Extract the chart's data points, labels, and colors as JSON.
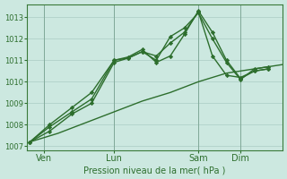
{
  "background_color": "#cce8e0",
  "grid_color": "#aaccc4",
  "line_color": "#2d6e2d",
  "text_color": "#2d6e2d",
  "xlabel": "Pression niveau de la mer( hPa )",
  "ylim": [
    1006.8,
    1013.6
  ],
  "yticks": [
    1007,
    1008,
    1009,
    1010,
    1011,
    1012,
    1013
  ],
  "day_labels": [
    "Ven",
    "Lun",
    "Sam",
    "Dim"
  ],
  "day_positions": [
    0.5,
    3.0,
    6.0,
    7.5
  ],
  "vlines_x": [
    0.5,
    3.0,
    6.0,
    7.5
  ],
  "xlim": [
    -0.1,
    9.0
  ],
  "series": [
    {
      "x": [
        0,
        1,
        2,
        3,
        4,
        5,
        6,
        7,
        8,
        9
      ],
      "y": [
        1007.2,
        1007.6,
        1008.1,
        1008.6,
        1009.1,
        1009.5,
        1010.0,
        1010.4,
        1010.6,
        1010.8
      ],
      "style": "-",
      "marker": null,
      "lw": 1.0
    },
    {
      "x": [
        0,
        0.7,
        1.5,
        2.2,
        3.0,
        3.5,
        4.0,
        4.5,
        5.0,
        5.5,
        6.0,
        6.5,
        7.0,
        7.5,
        8.0,
        8.5
      ],
      "y": [
        1007.2,
        1008.0,
        1008.8,
        1009.5,
        1011.0,
        1011.1,
        1011.4,
        1011.2,
        1011.8,
        1012.3,
        1013.25,
        1011.2,
        1010.3,
        1010.2,
        1010.5,
        1010.6
      ],
      "style": "-",
      "marker": "D",
      "markersize": 2.2,
      "lw": 1.0
    },
    {
      "x": [
        0,
        0.7,
        1.5,
        2.2,
        3.0,
        3.5,
        4.0,
        4.5,
        5.0,
        5.5,
        6.0,
        6.5,
        7.0,
        7.5,
        8.0,
        8.5
      ],
      "y": [
        1007.2,
        1007.9,
        1008.6,
        1009.2,
        1011.0,
        1011.15,
        1011.5,
        1010.9,
        1011.2,
        1012.2,
        1013.3,
        1012.3,
        1011.0,
        1010.15,
        1010.5,
        1010.6
      ],
      "style": "-",
      "marker": "D",
      "markersize": 2.2,
      "lw": 1.0
    },
    {
      "x": [
        0,
        0.7,
        1.5,
        2.2,
        3.0,
        3.5,
        4.0,
        4.5,
        5.0,
        5.5,
        6.0,
        6.5,
        7.0,
        7.5,
        8.0,
        8.5
      ],
      "y": [
        1007.2,
        1007.7,
        1008.5,
        1009.0,
        1010.9,
        1011.1,
        1011.4,
        1011.0,
        1012.1,
        1012.5,
        1013.2,
        1012.0,
        1010.9,
        1010.1,
        1010.6,
        1010.7
      ],
      "style": "-",
      "marker": "D",
      "markersize": 2.2,
      "lw": 1.0
    }
  ]
}
